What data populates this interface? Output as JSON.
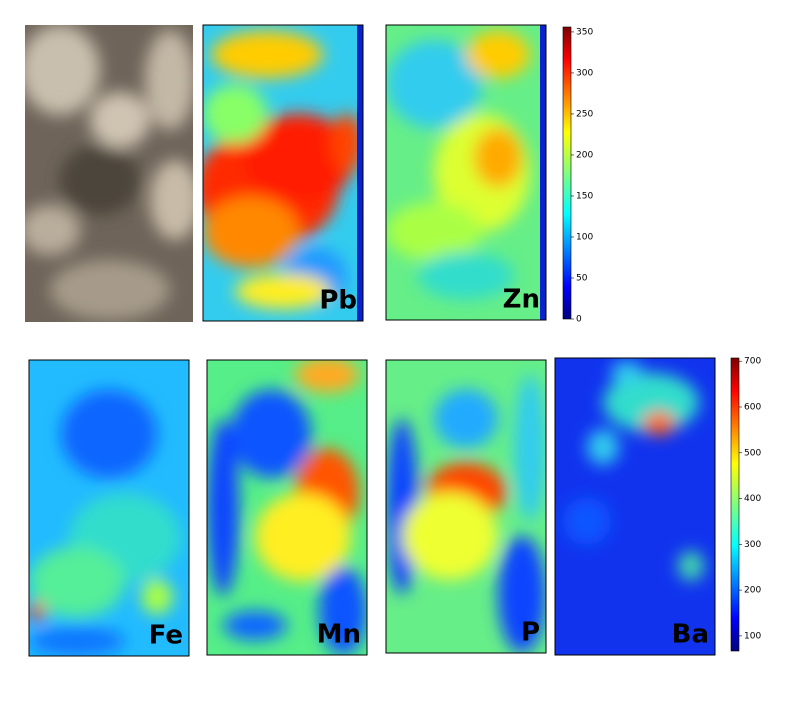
{
  "panels": [
    {
      "label": "Pb"
    },
    {
      "label": "Zn"
    },
    {
      "label": "Fe"
    },
    {
      "label": "Mn"
    },
    {
      "label": "P"
    },
    {
      "label": "Ba"
    }
  ],
  "colorbars": [
    {
      "lim": [
        0,
        356
      ],
      "ticks": [
        0,
        50,
        100,
        150,
        200,
        250,
        300,
        350
      ]
    },
    {
      "lim": [
        67,
        707
      ],
      "ticks": [
        100,
        200,
        300,
        400,
        500,
        600,
        700
      ]
    }
  ]
}
